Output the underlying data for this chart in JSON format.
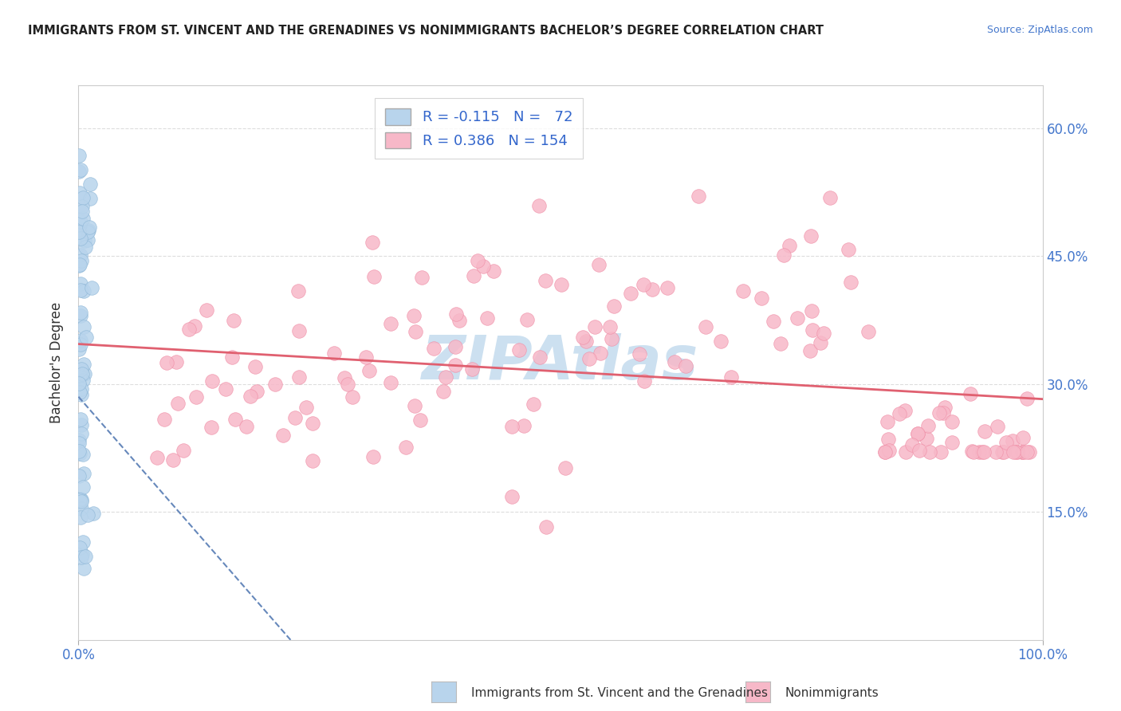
{
  "title": "IMMIGRANTS FROM ST. VINCENT AND THE GRENADINES VS NONIMMIGRANTS BACHELOR’S DEGREE CORRELATION CHART",
  "source": "Source: ZipAtlas.com",
  "ylabel": "Bachelor's Degree",
  "blue_R": -0.115,
  "blue_N": 72,
  "pink_R": 0.386,
  "pink_N": 154,
  "blue_color": "#b8d4ec",
  "blue_edge": "#90b8d8",
  "pink_color": "#f7b8c8",
  "pink_edge": "#f090a8",
  "blue_line_color": "#6688bb",
  "pink_line_color": "#e06070",
  "watermark": "ZIPAtlas",
  "watermark_color": "#cce0f0",
  "legend_label_blue": "Immigrants from St. Vincent and the Grenadines",
  "legend_label_pink": "Nonimmigrants",
  "xlim": [
    0.0,
    1.0
  ],
  "ylim": [
    0.0,
    0.65
  ],
  "xtick_labels": [
    "0.0%",
    "100.0%"
  ],
  "ytick_labels": [
    "15.0%",
    "30.0%",
    "45.0%",
    "60.0%"
  ],
  "ytick_values": [
    0.15,
    0.3,
    0.45,
    0.6
  ],
  "grid_color": "#dddddd",
  "bg_color": "#ffffff"
}
